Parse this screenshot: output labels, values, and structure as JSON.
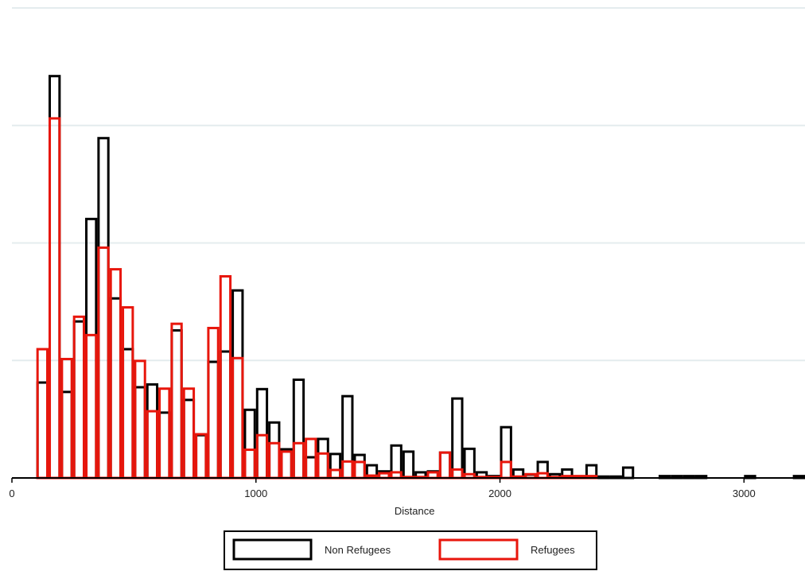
{
  "chart_data": {
    "type": "bar",
    "xlabel": "Distance",
    "ylabel": "",
    "title": "",
    "xlim": [
      0,
      3250
    ],
    "ylim": [
      0,
      1.0
    ],
    "x_ticks": [
      0,
      1000,
      2000,
      3000
    ],
    "y_gridlines": [
      0.25,
      0.5,
      0.75,
      1.0
    ],
    "y_tick_labels_visible": false,
    "bin_width": 50,
    "legend": {
      "position": "bottom",
      "entries": [
        "Non Refugees",
        "Refugees"
      ]
    },
    "series": [
      {
        "name": "Non Refugees",
        "color": "#000000",
        "bins": [
          [
            100,
            0.203
          ],
          [
            150,
            0.855
          ],
          [
            200,
            0.183
          ],
          [
            250,
            0.333
          ],
          [
            300,
            0.551
          ],
          [
            350,
            0.723
          ],
          [
            400,
            0.382
          ],
          [
            450,
            0.274
          ],
          [
            500,
            0.193
          ],
          [
            550,
            0.199
          ],
          [
            600,
            0.139
          ],
          [
            650,
            0.314
          ],
          [
            700,
            0.166
          ],
          [
            750,
            0.091
          ],
          [
            800,
            0.247
          ],
          [
            850,
            0.269
          ],
          [
            900,
            0.399
          ],
          [
            950,
            0.145
          ],
          [
            1000,
            0.189
          ],
          [
            1050,
            0.118
          ],
          [
            1100,
            0.061
          ],
          [
            1150,
            0.209
          ],
          [
            1200,
            0.044
          ],
          [
            1250,
            0.083
          ],
          [
            1300,
            0.051
          ],
          [
            1350,
            0.174
          ],
          [
            1400,
            0.049
          ],
          [
            1450,
            0.027
          ],
          [
            1500,
            0.014
          ],
          [
            1550,
            0.069
          ],
          [
            1600,
            0.056
          ],
          [
            1650,
            0.012
          ],
          [
            1700,
            0.014
          ],
          [
            1750,
            0.054
          ],
          [
            1800,
            0.169
          ],
          [
            1850,
            0.062
          ],
          [
            1900,
            0.012
          ],
          [
            1950,
            0.004
          ],
          [
            2000,
            0.108
          ],
          [
            2050,
            0.018
          ],
          [
            2100,
            0.007
          ],
          [
            2150,
            0.034
          ],
          [
            2200,
            0.008
          ],
          [
            2250,
            0.018
          ],
          [
            2300,
            0.003
          ],
          [
            2350,
            0.027
          ],
          [
            2400,
            0.003
          ],
          [
            2450,
            0.003
          ],
          [
            2500,
            0.022
          ],
          [
            2650,
            0.004
          ],
          [
            2700,
            0.004
          ],
          [
            2750,
            0.004
          ],
          [
            2800,
            0.004
          ],
          [
            3000,
            0.004
          ],
          [
            3200,
            0.004
          ]
        ]
      },
      {
        "name": "Refugees",
        "color": "#e8160c",
        "bins": [
          [
            100,
            0.274
          ],
          [
            150,
            0.765
          ],
          [
            200,
            0.253
          ],
          [
            250,
            0.343
          ],
          [
            300,
            0.304
          ],
          [
            350,
            0.49
          ],
          [
            400,
            0.444
          ],
          [
            450,
            0.363
          ],
          [
            500,
            0.249
          ],
          [
            550,
            0.142
          ],
          [
            600,
            0.19
          ],
          [
            650,
            0.328
          ],
          [
            700,
            0.19
          ],
          [
            750,
            0.093
          ],
          [
            800,
            0.319
          ],
          [
            850,
            0.429
          ],
          [
            900,
            0.255
          ],
          [
            950,
            0.06
          ],
          [
            1000,
            0.091
          ],
          [
            1050,
            0.074
          ],
          [
            1100,
            0.056
          ],
          [
            1150,
            0.074
          ],
          [
            1200,
            0.083
          ],
          [
            1250,
            0.052
          ],
          [
            1300,
            0.017
          ],
          [
            1350,
            0.035
          ],
          [
            1400,
            0.034
          ],
          [
            1450,
            0.005
          ],
          [
            1500,
            0.01
          ],
          [
            1550,
            0.012
          ],
          [
            1600,
            0.002
          ],
          [
            1650,
            0.002
          ],
          [
            1700,
            0.012
          ],
          [
            1750,
            0.054
          ],
          [
            1800,
            0.018
          ],
          [
            1850,
            0.008
          ],
          [
            1900,
            0.002
          ],
          [
            1950,
            0.002
          ],
          [
            2000,
            0.034
          ],
          [
            2050,
            0.003
          ],
          [
            2100,
            0.008
          ],
          [
            2150,
            0.01
          ],
          [
            2200,
            0.002
          ],
          [
            2250,
            0.004
          ],
          [
            2300,
            0.004
          ],
          [
            2350,
            0.004
          ]
        ]
      }
    ]
  }
}
